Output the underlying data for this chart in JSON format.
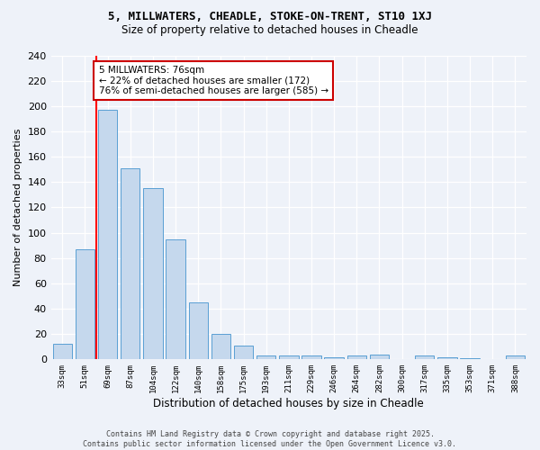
{
  "title1": "5, MILLWATERS, CHEADLE, STOKE-ON-TRENT, ST10 1XJ",
  "title2": "Size of property relative to detached houses in Cheadle",
  "xlabel": "Distribution of detached houses by size in Cheadle",
  "ylabel": "Number of detached properties",
  "categories": [
    "33sqm",
    "51sqm",
    "69sqm",
    "87sqm",
    "104sqm",
    "122sqm",
    "140sqm",
    "158sqm",
    "175sqm",
    "193sqm",
    "211sqm",
    "229sqm",
    "246sqm",
    "264sqm",
    "282sqm",
    "300sqm",
    "317sqm",
    "335sqm",
    "353sqm",
    "371sqm",
    "388sqm"
  ],
  "values": [
    12,
    87,
    197,
    151,
    135,
    95,
    45,
    20,
    11,
    3,
    3,
    3,
    2,
    3,
    4,
    0,
    3,
    2,
    1,
    0,
    3
  ],
  "bar_color": "#c5d8ed",
  "bar_edge_color": "#5a9fd4",
  "annotation_text": "5 MILLWATERS: 76sqm\n← 22% of detached houses are smaller (172)\n76% of semi-detached houses are larger (585) →",
  "annotation_box_color": "#ffffff",
  "annotation_box_edge_color": "#cc0000",
  "footer_text": "Contains HM Land Registry data © Crown copyright and database right 2025.\nContains public sector information licensed under the Open Government Licence v3.0.",
  "bg_color": "#eef2f9",
  "ylim": [
    0,
    240
  ],
  "yticks": [
    0,
    20,
    40,
    60,
    80,
    100,
    120,
    140,
    160,
    180,
    200,
    220,
    240
  ],
  "red_line_x": 1.5
}
